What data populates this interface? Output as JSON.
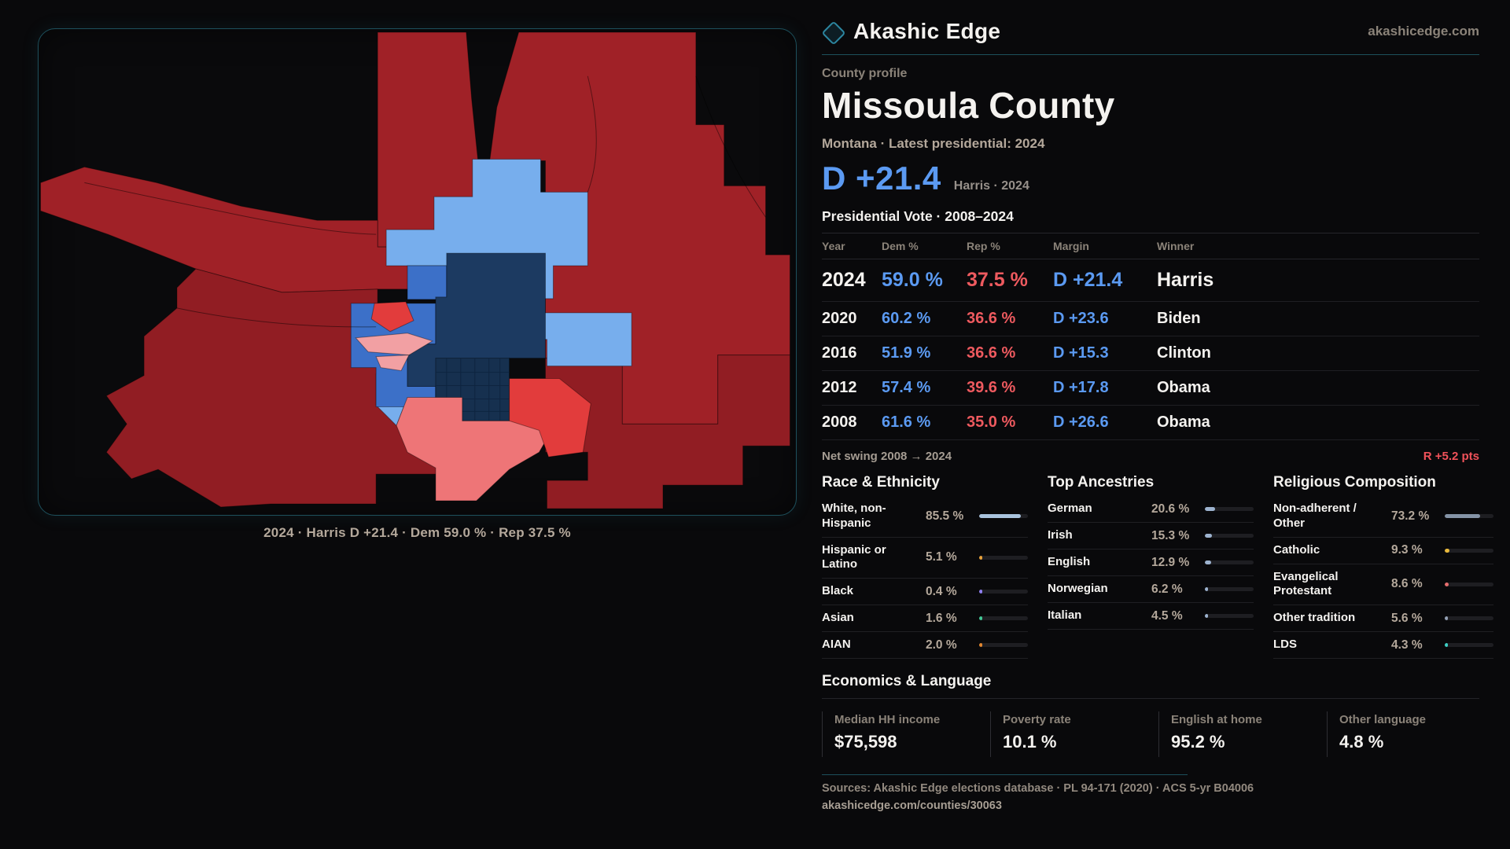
{
  "site": {
    "brand": "Akashic Edge",
    "domain_link": "akashicedge.com"
  },
  "profile": {
    "eyebrow": "County profile",
    "title": "Missoula County",
    "subtitle": "Montana · Latest presidential: 2024",
    "margin_value": "D +21.4",
    "margin_context": "Harris · 2024"
  },
  "map": {
    "caption": "2024 · Harris D +21.4 · Dem 59.0 % · Rep 37.5 %"
  },
  "table": {
    "title": "Presidential Vote · 2008–2024",
    "columns": {
      "year": "Year",
      "dem": "Dem %",
      "rep": "Rep %",
      "margin": "Margin",
      "winner": "Winner"
    },
    "rows": [
      {
        "year": "2024",
        "dem": "59.0 %",
        "rep": "37.5 %",
        "margin": "D +21.4",
        "winner": "Harris"
      },
      {
        "year": "2020",
        "dem": "60.2 %",
        "rep": "36.6 %",
        "margin": "D +23.6",
        "winner": "Biden"
      },
      {
        "year": "2016",
        "dem": "51.9 %",
        "rep": "36.6 %",
        "margin": "D +15.3",
        "winner": "Clinton"
      },
      {
        "year": "2012",
        "dem": "57.4 %",
        "rep": "39.6 %",
        "margin": "D +17.8",
        "winner": "Obama"
      },
      {
        "year": "2008",
        "dem": "61.6 %",
        "rep": "35.0 %",
        "margin": "D +26.6",
        "winner": "Obama"
      }
    ]
  },
  "net_swing": {
    "label": "Net swing 2008 → 2024",
    "value": "R +5.2 pts"
  },
  "demographics": {
    "race": {
      "title": "Race & Ethnicity",
      "items": [
        {
          "label": "White, non-Hispanic",
          "value": "85.5 %",
          "pct": 85.5,
          "color": "#a9c3dd"
        },
        {
          "label": "Hispanic or Latino",
          "value": "5.1 %",
          "pct": 5.1,
          "color": "#e8a23b"
        },
        {
          "label": "Black",
          "value": "0.4 %",
          "pct": 0.4,
          "color": "#8f7ff2"
        },
        {
          "label": "Asian",
          "value": "1.6 %",
          "pct": 1.6,
          "color": "#43c996"
        },
        {
          "label": "AIAN",
          "value": "2.0 %",
          "pct": 2.0,
          "color": "#e2872f"
        }
      ]
    },
    "ancestries": {
      "title": "Top Ancestries",
      "items": [
        {
          "label": "German",
          "value": "20.6 %",
          "pct": 20.6,
          "color": "#9db3cf"
        },
        {
          "label": "Irish",
          "value": "15.3 %",
          "pct": 15.3,
          "color": "#9db3cf"
        },
        {
          "label": "English",
          "value": "12.9 %",
          "pct": 12.9,
          "color": "#9db3cf"
        },
        {
          "label": "Norwegian",
          "value": "6.2 %",
          "pct": 6.2,
          "color": "#9db3cf"
        },
        {
          "label": "Italian",
          "value": "4.5 %",
          "pct": 4.5,
          "color": "#9db3cf"
        }
      ]
    },
    "religion": {
      "title": "Religious Composition",
      "items": [
        {
          "label": "Non-adherent / Other",
          "value": "73.2 %",
          "pct": 73.2,
          "color": "#8493a6"
        },
        {
          "label": "Catholic",
          "value": "9.3 %",
          "pct": 9.3,
          "color": "#e9b93c"
        },
        {
          "label": "Evangelical Protestant",
          "value": "8.6 %",
          "pct": 8.6,
          "color": "#e76e6e"
        },
        {
          "label": "Other tradition",
          "value": "5.6 %",
          "pct": 5.6,
          "color": "#93a0b4"
        },
        {
          "label": "LDS",
          "value": "4.3 %",
          "pct": 4.3,
          "color": "#3ecfc4"
        }
      ]
    }
  },
  "economics": {
    "title": "Economics & Language",
    "stats": [
      {
        "label": "Median HH income",
        "value": "$75,598"
      },
      {
        "label": "Poverty rate",
        "value": "10.1 %"
      },
      {
        "label": "English at home",
        "value": "95.2 %"
      },
      {
        "label": "Other language",
        "value": "4.8 %"
      }
    ]
  },
  "sources": {
    "line1": "Sources: Akashic Edge elections database · PL 94-171 (2020) · ACS 5-yr B04006",
    "line2": "akashicedge.com/counties/30063"
  },
  "theme": {
    "colors": {
      "page-bg": "#09090b",
      "card-bg": "#0a0a0c",
      "teal-border": "#1d505c",
      "gray-divider": "#26262b",
      "text-white": "#f4f2ef",
      "text-gray": "#8b8379",
      "text-warm": "#b4a89b",
      "dem-blue": "#5b9af2",
      "rep-red": "#ee5a5f",
      "swing-red": "#f1525a",
      "bar-track": "#1e1e22",
      "map-dark-red": "#a02127",
      "map-deep-red": "#911d23",
      "map-bright-red": "#e23c3c",
      "map-salmon": "#ee7577",
      "map-pink": "#f2a0a3",
      "map-light-blue": "#77aeed",
      "map-medium-blue": "#3c70c8",
      "map-navy": "#1c3a61",
      "map-city": "#16304f"
    }
  }
}
